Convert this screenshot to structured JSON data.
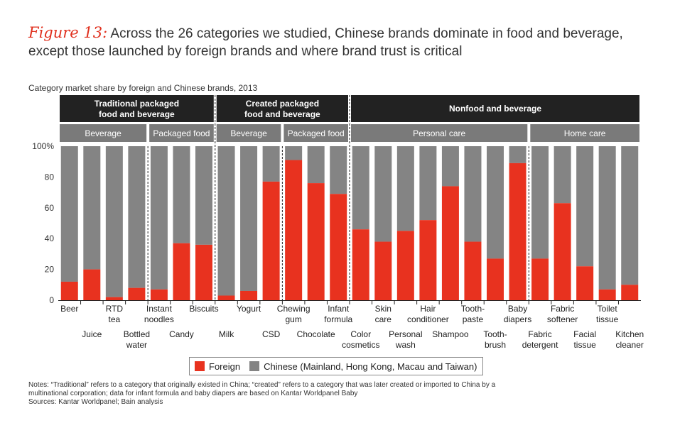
{
  "title": {
    "figure_label": "Figure 13:",
    "line1": " Across the 26 categories we studied, Chinese brands dominate in food and beverage,",
    "line2": "except those launched by foreign brands and where brand trust is critical"
  },
  "subtitle": "Category market share by foreign and Chinese brands, 2013",
  "colors": {
    "foreign": "#e8321f",
    "chinese": "#848484",
    "header_dark": "#222222",
    "header_grey": "#7a7a7a"
  },
  "groups": [
    {
      "label": "Traditional packaged food and beverage",
      "lines": [
        "Traditional packaged",
        "food and beverage"
      ],
      "start": 0,
      "end": 7
    },
    {
      "label": "Created packaged food and beverage",
      "lines": [
        "Created packaged",
        "food and beverage"
      ],
      "start": 7,
      "end": 13
    },
    {
      "label": "Nonfood and beverage",
      "lines": [
        "Nonfood and beverage"
      ],
      "start": 13,
      "end": 26
    }
  ],
  "subgroups": [
    {
      "label": "Beverage",
      "start": 0,
      "end": 4
    },
    {
      "label": "Packaged food",
      "start": 4,
      "end": 7
    },
    {
      "label": "Beverage",
      "start": 7,
      "end": 10
    },
    {
      "label": "Packaged food",
      "start": 10,
      "end": 13
    },
    {
      "label": "Personal care",
      "start": 13,
      "end": 21
    },
    {
      "label": "Home care",
      "start": 21,
      "end": 26
    }
  ],
  "chart_data": {
    "type": "bar",
    "stacked": true,
    "title": "Category market share by foreign and Chinese brands, 2013",
    "ylabel": "",
    "ylim": [
      0,
      100
    ],
    "yticks": [
      "0",
      "20",
      "40",
      "60",
      "80",
      "100%"
    ],
    "categories": [
      [
        "Beer"
      ],
      [
        "Juice"
      ],
      [
        "RTD",
        "tea"
      ],
      [
        "Bottled",
        "water"
      ],
      [
        "Instant",
        "noodles"
      ],
      [
        "Candy"
      ],
      [
        "Biscuits"
      ],
      [
        "Milk"
      ],
      [
        "Yogurt"
      ],
      [
        "CSD"
      ],
      [
        "Chewing",
        "gum"
      ],
      [
        "Chocolate"
      ],
      [
        "Infant",
        "formula"
      ],
      [
        "Color",
        "cosmetics"
      ],
      [
        "Skin",
        "care"
      ],
      [
        "Personal",
        "wash"
      ],
      [
        "Hair",
        "conditioner"
      ],
      [
        "Shampoo"
      ],
      [
        "Tooth-",
        "paste"
      ],
      [
        "Tooth-",
        "brush"
      ],
      [
        "Baby",
        "diapers"
      ],
      [
        "Fabric",
        "detergent"
      ],
      [
        "Fabric",
        "softener"
      ],
      [
        "Facial",
        "tissue"
      ],
      [
        "Toilet",
        "tissue"
      ],
      [
        "Kitchen",
        "cleaner"
      ]
    ],
    "series": [
      {
        "name": "Foreign",
        "values": [
          12,
          20,
          2,
          8,
          7,
          37,
          36,
          3,
          6,
          77,
          91,
          76,
          69,
          46,
          38,
          45,
          52,
          74,
          38,
          27,
          89,
          27,
          63,
          22,
          7,
          10
        ]
      },
      {
        "name": "Chinese (Mainland, Hong Kong, Macau and Taiwan)",
        "values": [
          88,
          80,
          98,
          92,
          93,
          63,
          64,
          97,
          94,
          23,
          9,
          24,
          31,
          54,
          62,
          55,
          48,
          26,
          62,
          73,
          11,
          73,
          37,
          78,
          93,
          90
        ]
      }
    ],
    "legend": [
      "Foreign",
      "Chinese (Mainland, Hong Kong, Macau and Taiwan)"
    ],
    "legend_position": "bottom-center"
  },
  "notes": {
    "line1": "Notes: “Traditional” refers to a category that originally existed in China; “created” refers to a category that was later created or imported to China by a",
    "line2": "multinational corporation; data for infant formula and baby diapers are based on Kantar Worldpanel Baby",
    "line3": "Sources: Kantar Worldpanel; Bain analysis"
  }
}
